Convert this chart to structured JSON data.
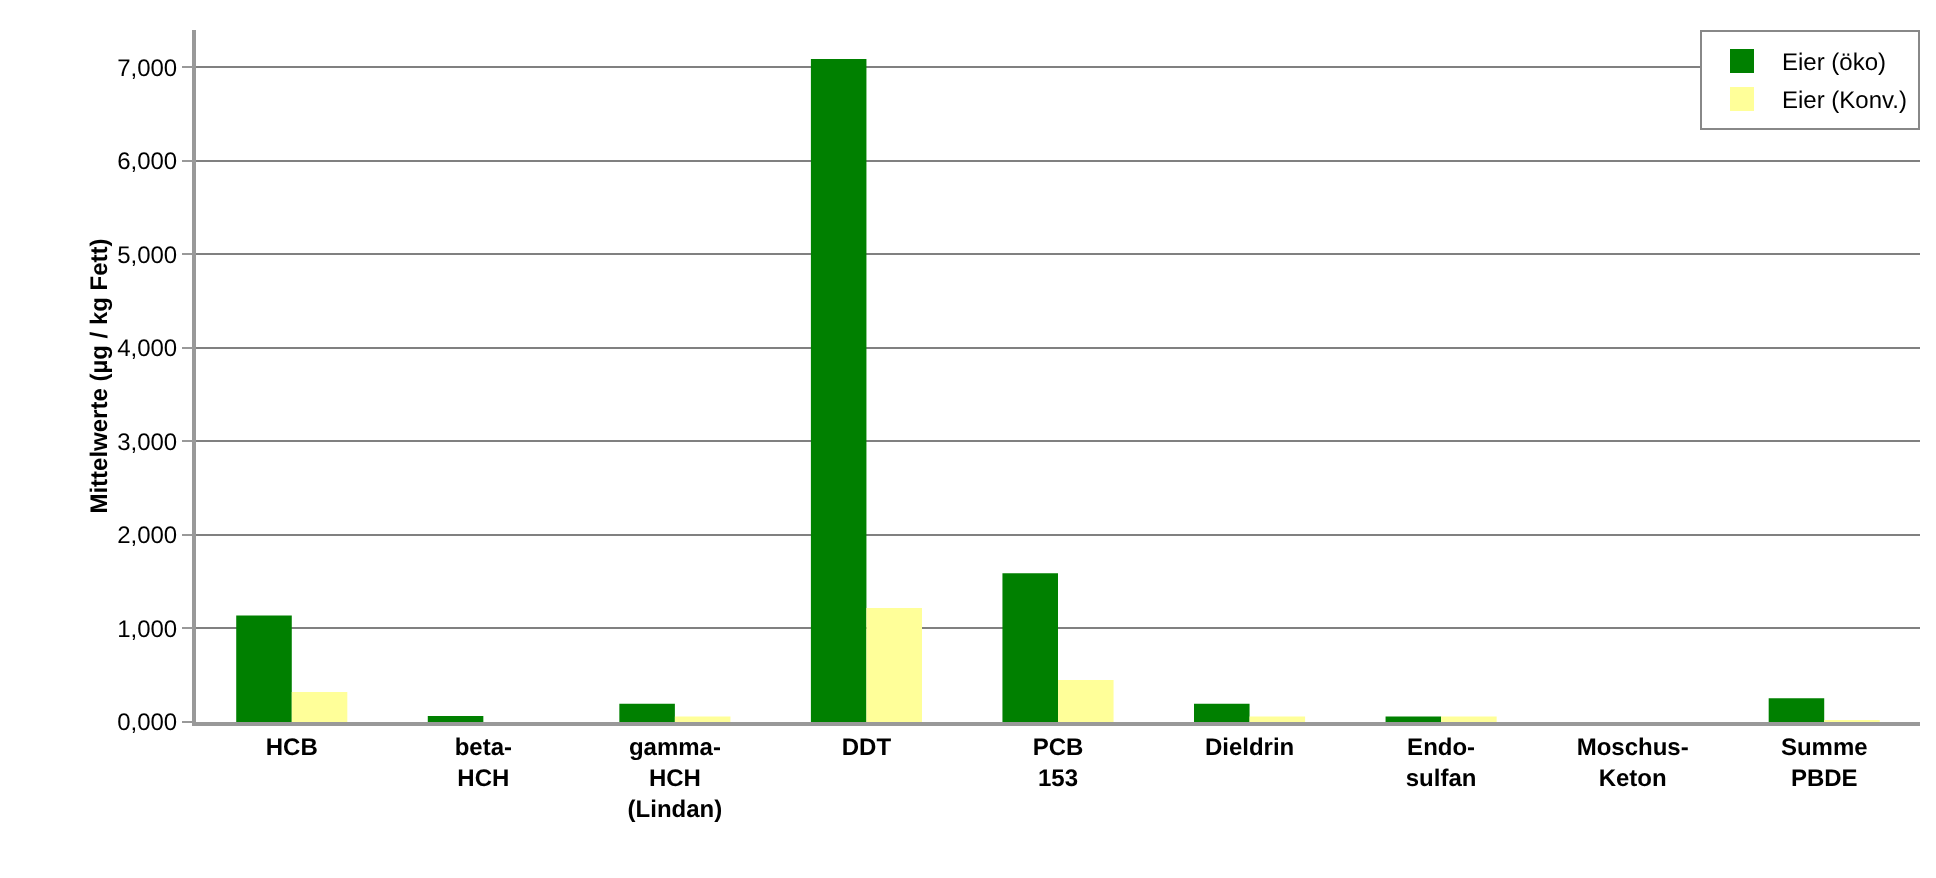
{
  "chart_data": {
    "type": "bar",
    "ylabel": "Mittelwerte (µg / kg Fett)",
    "categories": [
      "HCB",
      "beta-\nHCH",
      "gamma-\nHCH\n(Lindan)",
      "DDT",
      "PCB\n153",
      "Dieldrin",
      "Endo-\nsulfan",
      "Moschus-\nKeton",
      "Summe\nPBDE"
    ],
    "series": [
      {
        "name": "Eier (öko)",
        "color": "#008000",
        "values": [
          1140,
          65,
          195,
          7090,
          1590,
          195,
          60,
          0,
          255
        ]
      },
      {
        "name": "Eier (Konv.)",
        "color": "#ffff99",
        "values": [
          320,
          0,
          60,
          1220,
          450,
          60,
          60,
          0,
          20
        ]
      }
    ],
    "ylim": [
      0,
      7400
    ],
    "yticks": [
      {
        "value": 0,
        "label": "0,000"
      },
      {
        "value": 1000,
        "label": "1,000"
      },
      {
        "value": 2000,
        "label": "2,000"
      },
      {
        "value": 3000,
        "label": "3,000"
      },
      {
        "value": 4000,
        "label": "4,000"
      },
      {
        "value": 5000,
        "label": "5,000"
      },
      {
        "value": 6000,
        "label": "6,000"
      },
      {
        "value": 7000,
        "label": "7,000"
      }
    ],
    "grid": "y",
    "legend": "top right"
  }
}
